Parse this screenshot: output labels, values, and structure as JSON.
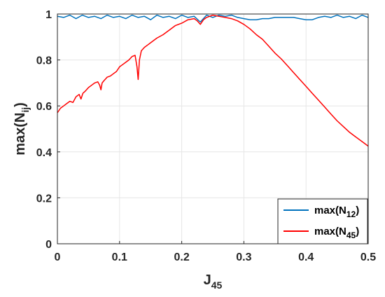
{
  "chart_data": {
    "type": "line",
    "title": "",
    "xlabel": "J",
    "xlabel_sub": "45",
    "ylabel": "max(N",
    "ylabel_sub": "ij",
    "ylabel_close": ")",
    "xlim": [
      0,
      0.5
    ],
    "ylim": [
      0,
      1
    ],
    "xticks": [
      "0",
      "0.1",
      "0.2",
      "0.3",
      "0.4",
      "0.5"
    ],
    "yticks": [
      "0",
      "0.2",
      "0.4",
      "0.6",
      "0.8",
      "1"
    ],
    "grid": true,
    "legend_position": "bottom-right",
    "series": [
      {
        "name": "max(N12)",
        "legend_main": "max(N",
        "legend_sub": "12",
        "legend_close": ")",
        "color": "#0072BD",
        "x": [
          0,
          0.01,
          0.02,
          0.03,
          0.04,
          0.05,
          0.06,
          0.07,
          0.08,
          0.09,
          0.1,
          0.11,
          0.12,
          0.13,
          0.14,
          0.15,
          0.16,
          0.17,
          0.18,
          0.19,
          0.2,
          0.21,
          0.22,
          0.23,
          0.24,
          0.25,
          0.26,
          0.27,
          0.28,
          0.29,
          0.3,
          0.31,
          0.32,
          0.33,
          0.34,
          0.35,
          0.36,
          0.37,
          0.38,
          0.39,
          0.4,
          0.41,
          0.42,
          0.43,
          0.44,
          0.45,
          0.46,
          0.47,
          0.48,
          0.49,
          0.5
        ],
        "y": [
          0.99,
          0.985,
          0.995,
          0.98,
          0.995,
          0.985,
          0.99,
          0.98,
          0.995,
          0.985,
          0.99,
          0.98,
          0.995,
          0.985,
          0.99,
          0.975,
          0.995,
          0.985,
          0.99,
          0.98,
          0.995,
          0.985,
          0.99,
          0.965,
          0.995,
          0.985,
          0.995,
          0.99,
          0.995,
          0.985,
          0.98,
          0.975,
          0.975,
          0.98,
          0.98,
          0.985,
          0.985,
          0.985,
          0.985,
          0.98,
          0.975,
          0.975,
          0.985,
          0.99,
          0.985,
          0.995,
          0.985,
          0.99,
          0.98,
          0.995,
          0.985
        ]
      },
      {
        "name": "max(N45)",
        "legend_main": "max(N",
        "legend_sub": "45",
        "legend_close": ")",
        "color": "#FF0000",
        "x": [
          0,
          0.005,
          0.01,
          0.015,
          0.02,
          0.025,
          0.03,
          0.035,
          0.038,
          0.041,
          0.045,
          0.05,
          0.055,
          0.06,
          0.065,
          0.068,
          0.07,
          0.072,
          0.075,
          0.08,
          0.085,
          0.09,
          0.095,
          0.1,
          0.105,
          0.11,
          0.115,
          0.12,
          0.125,
          0.128,
          0.13,
          0.132,
          0.135,
          0.14,
          0.145,
          0.15,
          0.16,
          0.17,
          0.18,
          0.19,
          0.2,
          0.21,
          0.22,
          0.225,
          0.23,
          0.235,
          0.24,
          0.25,
          0.26,
          0.27,
          0.28,
          0.29,
          0.3,
          0.31,
          0.32,
          0.33,
          0.34,
          0.35,
          0.36,
          0.37,
          0.38,
          0.39,
          0.4,
          0.41,
          0.42,
          0.43,
          0.44,
          0.45,
          0.46,
          0.47,
          0.48,
          0.49,
          0.5
        ],
        "y": [
          0.57,
          0.59,
          0.6,
          0.61,
          0.62,
          0.615,
          0.64,
          0.65,
          0.63,
          0.655,
          0.665,
          0.68,
          0.69,
          0.7,
          0.705,
          0.69,
          0.67,
          0.7,
          0.71,
          0.725,
          0.73,
          0.74,
          0.75,
          0.77,
          0.78,
          0.79,
          0.8,
          0.815,
          0.82,
          0.77,
          0.715,
          0.8,
          0.84,
          0.855,
          0.865,
          0.875,
          0.895,
          0.91,
          0.93,
          0.95,
          0.96,
          0.975,
          0.98,
          0.97,
          0.955,
          0.975,
          0.985,
          0.995,
          0.99,
          0.985,
          0.98,
          0.97,
          0.955,
          0.935,
          0.91,
          0.89,
          0.86,
          0.83,
          0.805,
          0.775,
          0.745,
          0.715,
          0.685,
          0.655,
          0.625,
          0.595,
          0.565,
          0.535,
          0.51,
          0.485,
          0.465,
          0.445,
          0.425
        ]
      }
    ]
  }
}
